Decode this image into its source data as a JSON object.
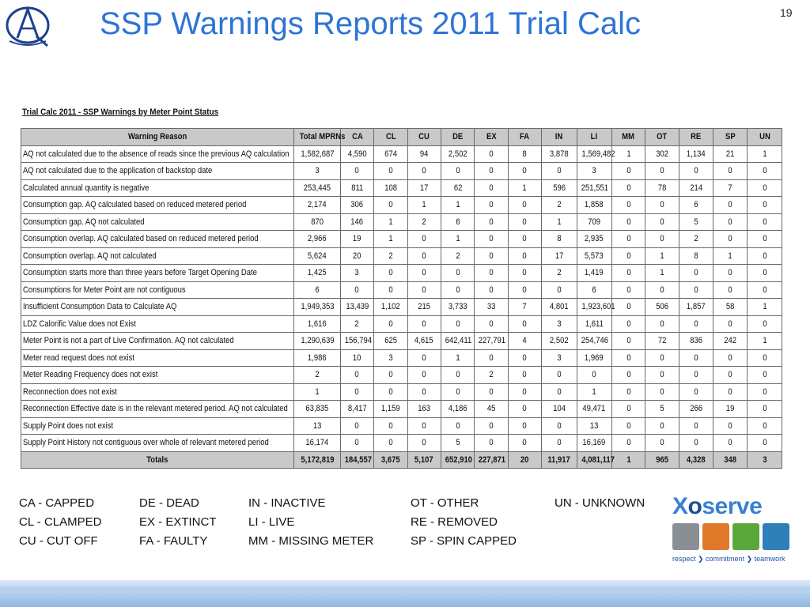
{
  "slide": {
    "title": "SSP Warnings Reports 2011 Trial Calc",
    "page_number": "19",
    "logo_icon": "quality-a-logo-icon"
  },
  "table": {
    "caption": "Trial Calc 2011 - SSP Warnings by Meter Point Status",
    "headers": [
      "Warning Reason",
      "Total MPRNs",
      "CA",
      "CL",
      "CU",
      "DE",
      "EX",
      "FA",
      "IN",
      "LI",
      "MM",
      "OT",
      "RE",
      "SP",
      "UN"
    ],
    "rows": [
      [
        "AQ not calculated due to the absence of reads since the previous AQ calculation",
        "1,582,687",
        "4,590",
        "674",
        "94",
        "2,502",
        "0",
        "8",
        "3,878",
        "1,569,482",
        "1",
        "302",
        "1,134",
        "21",
        "1"
      ],
      [
        "AQ not calculated due to the application of backstop date",
        "3",
        "0",
        "0",
        "0",
        "0",
        "0",
        "0",
        "0",
        "3",
        "0",
        "0",
        "0",
        "0",
        "0"
      ],
      [
        "Calculated annual quantity is negative",
        "253,445",
        "811",
        "108",
        "17",
        "62",
        "0",
        "1",
        "596",
        "251,551",
        "0",
        "78",
        "214",
        "7",
        "0"
      ],
      [
        "Consumption gap. AQ calculated based on reduced metered period",
        "2,174",
        "306",
        "0",
        "1",
        "1",
        "0",
        "0",
        "2",
        "1,858",
        "0",
        "0",
        "6",
        "0",
        "0"
      ],
      [
        "Consumption gap. AQ not calculated",
        "870",
        "146",
        "1",
        "2",
        "6",
        "0",
        "0",
        "1",
        "709",
        "0",
        "0",
        "5",
        "0",
        "0"
      ],
      [
        "Consumption overlap. AQ calculated based on reduced metered period",
        "2,966",
        "19",
        "1",
        "0",
        "1",
        "0",
        "0",
        "8",
        "2,935",
        "0",
        "0",
        "2",
        "0",
        "0"
      ],
      [
        "Consumption overlap. AQ not calculated",
        "5,624",
        "20",
        "2",
        "0",
        "2",
        "0",
        "0",
        "17",
        "5,573",
        "0",
        "1",
        "8",
        "1",
        "0"
      ],
      [
        "Consumption starts more than three years before Target Opening Date",
        "1,425",
        "3",
        "0",
        "0",
        "0",
        "0",
        "0",
        "2",
        "1,419",
        "0",
        "1",
        "0",
        "0",
        "0"
      ],
      [
        "Consumptions for Meter Point are not contiguous",
        "6",
        "0",
        "0",
        "0",
        "0",
        "0",
        "0",
        "0",
        "6",
        "0",
        "0",
        "0",
        "0",
        "0"
      ],
      [
        "Insufficient Consumption Data to Calculate AQ",
        "1,949,353",
        "13,439",
        "1,102",
        "215",
        "3,733",
        "33",
        "7",
        "4,801",
        "1,923,601",
        "0",
        "506",
        "1,857",
        "58",
        "1"
      ],
      [
        "LDZ Calorific Value does not Exist",
        "1,616",
        "2",
        "0",
        "0",
        "0",
        "0",
        "0",
        "3",
        "1,611",
        "0",
        "0",
        "0",
        "0",
        "0"
      ],
      [
        "Meter Point is not a part of Live Confirmation. AQ not calculated",
        "1,290,639",
        "156,794",
        "625",
        "4,615",
        "642,411",
        "227,791",
        "4",
        "2,502",
        "254,746",
        "0",
        "72",
        "836",
        "242",
        "1"
      ],
      [
        "Meter read request does not exist",
        "1,986",
        "10",
        "3",
        "0",
        "1",
        "0",
        "0",
        "3",
        "1,969",
        "0",
        "0",
        "0",
        "0",
        "0"
      ],
      [
        "Meter Reading Frequency does not exist",
        "2",
        "0",
        "0",
        "0",
        "0",
        "2",
        "0",
        "0",
        "0",
        "0",
        "0",
        "0",
        "0",
        "0"
      ],
      [
        "Reconnection does not exist",
        "1",
        "0",
        "0",
        "0",
        "0",
        "0",
        "0",
        "0",
        "1",
        "0",
        "0",
        "0",
        "0",
        "0"
      ],
      [
        "Reconnection Effective date is in the relevant metered period. AQ not calculated",
        "63,835",
        "8,417",
        "1,159",
        "163",
        "4,186",
        "45",
        "0",
        "104",
        "49,471",
        "0",
        "5",
        "266",
        "19",
        "0"
      ],
      [
        "Supply Point does not exist",
        "13",
        "0",
        "0",
        "0",
        "0",
        "0",
        "0",
        "0",
        "13",
        "0",
        "0",
        "0",
        "0",
        "0"
      ],
      [
        "Supply Point History not contiguous over whole of relevant metered period",
        "16,174",
        "0",
        "0",
        "0",
        "5",
        "0",
        "0",
        "0",
        "16,169",
        "0",
        "0",
        "0",
        "0",
        "0"
      ]
    ],
    "totals": [
      "Totals",
      "5,172,819",
      "184,557",
      "3,675",
      "5,107",
      "652,910",
      "227,871",
      "20",
      "11,917",
      "4,081,117",
      "1",
      "965",
      "4,328",
      "348",
      "3"
    ]
  },
  "legend": [
    {
      "text": "CA  -  CAPPED"
    },
    {
      "text": "CL  -  CLAMPED"
    },
    {
      "text": "CU  -  CUT OFF"
    },
    {
      "text": "DE  -  DEAD"
    },
    {
      "text": "EX  -  EXTINCT"
    },
    {
      "text": "FA  -  FAULTY"
    },
    {
      "text": "IN    -  INACTIVE"
    },
    {
      "text": "LI    -  LIVE"
    },
    {
      "text": "MM  -  MISSING METER"
    },
    {
      "text": "OT  -  OTHER"
    },
    {
      "text": "RE  -  REMOVED"
    },
    {
      "text": "SP  -  SPIN CAPPED"
    },
    {
      "text": "UN  -  UNKNOWN"
    }
  ],
  "brand": {
    "logo_text_prefix": "X",
    "logo_text_mid": "o",
    "logo_text_suffix": "serve",
    "tagline": "respect ❯ commitment ❯ teamwork",
    "tile_colors": [
      "#8a8f95",
      "#e07a2a",
      "#5aa83a",
      "#2f7fb8"
    ]
  },
  "colors": {
    "title": "#2e74d6",
    "header_bg": "#c9c9c9",
    "brand_blue": "#3a7fd0"
  }
}
